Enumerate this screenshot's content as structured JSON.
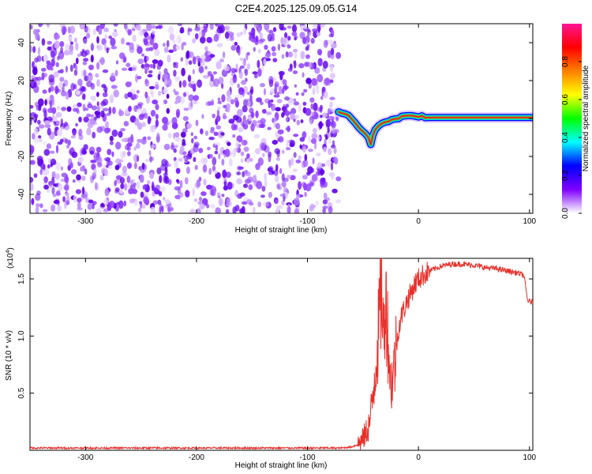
{
  "title": "C2E4.2025.125.09.05.G14",
  "chart_data": [
    {
      "type": "heatmap",
      "xlabel": "Height of straight line (km)",
      "ylabel": "Frequency (Hz)",
      "xlim": [
        -350,
        103
      ],
      "ylim": [
        -50,
        50
      ],
      "xticks": [
        -300,
        -200,
        -100,
        0,
        100
      ],
      "yticks": [
        -40,
        -20,
        0,
        20,
        40
      ],
      "noise_region_x": [
        -350,
        -72
      ],
      "ridge": {
        "x": [
          -72,
          -69,
          -66,
          -63,
          -60,
          -57,
          -54,
          -51,
          -48,
          -45,
          -43,
          -41,
          -39,
          -36,
          -33,
          -30,
          -27,
          -24,
          -21,
          -18,
          -15,
          -12,
          -9,
          -6,
          -3,
          0,
          3,
          6,
          10,
          20,
          40,
          60,
          80,
          100,
          103
        ],
        "y": [
          3.5,
          2.8,
          2.4,
          1.6,
          -0.4,
          -2.3,
          -4.6,
          -6.4,
          -7.9,
          -10.1,
          -13.7,
          -8.7,
          -5.9,
          -3.9,
          -2.6,
          -1.9,
          -1.6,
          -0.6,
          -0.2,
          -0.1,
          1.2,
          1.4,
          1.5,
          1.5,
          1.2,
          0.8,
          1.4,
          0.4,
          0.5,
          0.5,
          0.5,
          0.5,
          0.5,
          0.5,
          0.5
        ]
      },
      "colorbar": {
        "label": "Normalized spectral amplitude",
        "ticks": [
          0.0,
          0.2,
          0.4,
          0.6,
          0.8
        ],
        "range": [
          0,
          1
        ],
        "colors": [
          "#ffffff",
          "#7f00ff",
          "#0000ff",
          "#00ffff",
          "#00ff00",
          "#ffff00",
          "#ff7f00",
          "#ff0000",
          "#ff1493"
        ]
      }
    },
    {
      "type": "line",
      "xlabel": "Height of straight line (km)",
      "ylabel": "SNR (10 * v/v)",
      "multiplier": "(x10",
      "multiplier_exp": "4",
      "multiplier_close": ")",
      "xlim": [
        -350,
        103
      ],
      "ylim": [
        0,
        1.68
      ],
      "xticks": [
        -300,
        -200,
        -100,
        0,
        100
      ],
      "yticks": [
        0.5,
        1.0,
        1.5
      ],
      "ytick_labels": [
        "0.5",
        "1.0",
        "1.5"
      ],
      "color": "#e8302a",
      "series": [
        {
          "x": [
            -350,
            -300,
            -250,
            -200,
            -150,
            -100,
            -70,
            -60,
            -55,
            -50,
            -47,
            -44,
            -42,
            -40,
            -38,
            -36,
            -35,
            -33,
            -31,
            -30,
            -28,
            -26,
            -25,
            -22,
            -20,
            -18,
            -15,
            -12,
            -10,
            -7,
            -5,
            -3,
            0,
            5,
            10,
            15,
            20,
            25,
            30,
            40,
            50,
            60,
            70,
            80,
            90,
            95,
            97,
            98,
            100,
            103
          ],
          "y": [
            0.02,
            0.02,
            0.02,
            0.02,
            0.02,
            0.02,
            0.02,
            0.03,
            0.05,
            0.1,
            0.16,
            0.24,
            0.38,
            0.6,
            0.82,
            1.02,
            1.25,
            1.43,
            0.9,
            1.48,
            1.1,
            0.75,
            0.56,
            0.72,
            0.9,
            1.06,
            1.19,
            1.26,
            1.32,
            1.37,
            1.42,
            1.46,
            1.5,
            1.54,
            1.57,
            1.59,
            1.61,
            1.62,
            1.63,
            1.63,
            1.62,
            1.6,
            1.59,
            1.57,
            1.55,
            1.53,
            1.4,
            1.32,
            1.3,
            1.3
          ]
        }
      ]
    }
  ]
}
